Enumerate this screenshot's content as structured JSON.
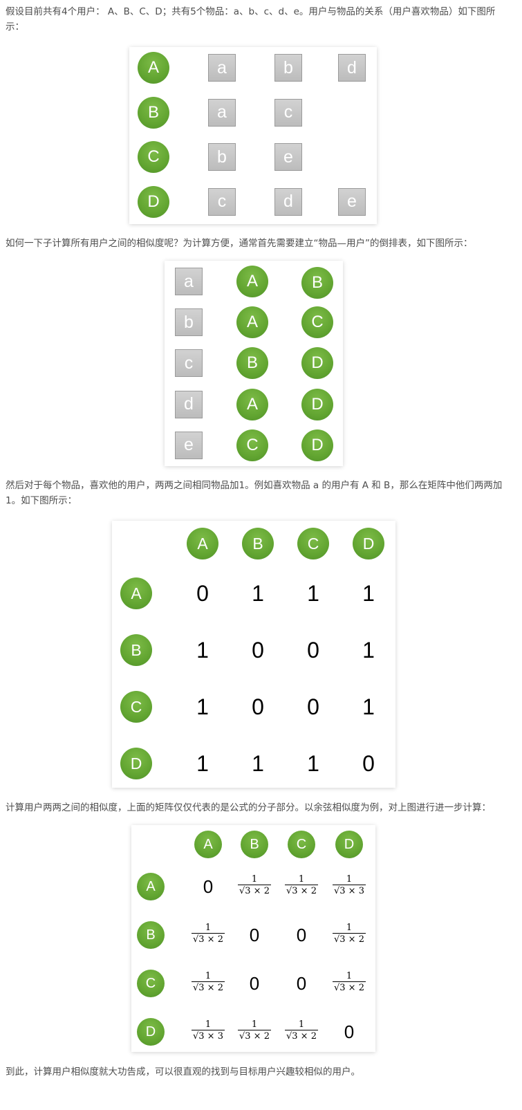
{
  "paragraphs": {
    "p1": "假设目前共有4个用户： A、B、C、D；共有5个物品：a、b、c、d、e。用户与物品的关系（用户喜欢物品）如下图所示：",
    "p2": "如何一下子计算所有用户之间的相似度呢？为计算方便，通常首先需要建立“物品—用户”的倒排表，如下图所示：",
    "p3": "然后对于每个物品，喜欢他的用户，两两之间相同物品加1。例如喜欢物品 a 的用户有 A 和 B，那么在矩阵中他们两两加1。如下图所示：",
    "p4": "计算用户两两之间的相似度，上面的矩阵仅仅代表的是公式的分子部分。以余弦相似度为例，对上图进行进一步计算：",
    "p5": "到此，计算用户相似度就大功告成，可以很直观的找到与目标用户兴趣较相似的用户。"
  },
  "colors": {
    "user_green": "#62a531",
    "item_gray": "#c4c4c4",
    "text": "#4d4d4d"
  },
  "user_item": [
    {
      "user": "A",
      "items": [
        "a",
        "b",
        "d"
      ]
    },
    {
      "user": "B",
      "items": [
        "a",
        "c"
      ]
    },
    {
      "user": "C",
      "items": [
        "b",
        "e"
      ]
    },
    {
      "user": "D",
      "items": [
        "c",
        "d",
        "e"
      ]
    }
  ],
  "item_user": [
    {
      "item": "a",
      "users": [
        "A",
        "B"
      ]
    },
    {
      "item": "b",
      "users": [
        "A",
        "C"
      ]
    },
    {
      "item": "c",
      "users": [
        "B",
        "D"
      ]
    },
    {
      "item": "d",
      "users": [
        "A",
        "D"
      ]
    },
    {
      "item": "e",
      "users": [
        "C",
        "D"
      ]
    }
  ],
  "cooccurrence": {
    "users": [
      "A",
      "B",
      "C",
      "D"
    ],
    "rows": [
      [
        "0",
        "1",
        "1",
        "1"
      ],
      [
        "1",
        "0",
        "0",
        "1"
      ],
      [
        "1",
        "0",
        "0",
        "1"
      ],
      [
        "1",
        "1",
        "1",
        "0"
      ]
    ]
  },
  "cosine": {
    "users": [
      "A",
      "B",
      "C",
      "D"
    ],
    "rows": [
      [
        {
          "v": "0"
        },
        {
          "n": "1",
          "d": "√3 × 2"
        },
        {
          "n": "1",
          "d": "√3 × 2"
        },
        {
          "n": "1",
          "d": "√3 × 3"
        }
      ],
      [
        {
          "n": "1",
          "d": "√3 × 2"
        },
        {
          "v": "0"
        },
        {
          "v": "0"
        },
        {
          "n": "1",
          "d": "√3 × 2"
        }
      ],
      [
        {
          "n": "1",
          "d": "√3 × 2"
        },
        {
          "v": "0"
        },
        {
          "v": "0"
        },
        {
          "n": "1",
          "d": "√3 × 2"
        }
      ],
      [
        {
          "n": "1",
          "d": "√3 × 3"
        },
        {
          "n": "1",
          "d": "√3 × 2"
        },
        {
          "n": "1",
          "d": "√3 × 2"
        },
        {
          "v": "0"
        }
      ]
    ]
  }
}
